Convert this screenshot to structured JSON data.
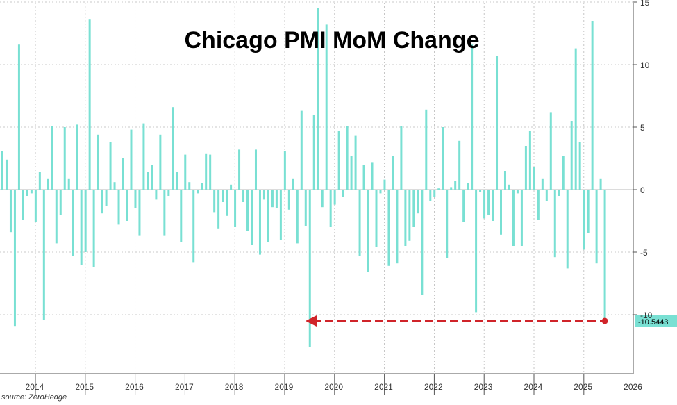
{
  "source": "source: ZeroHedge",
  "colors": {
    "bar": "#79e0d3",
    "arrow": "#d0242a",
    "label_bg": "#79e0d3",
    "grid": "#b8b8b8"
  },
  "chart_data": {
    "type": "bar",
    "title": "Chicago PMI MoM Change",
    "xlabel": "",
    "ylabel": "",
    "ylim": [
      -12.5,
      15
    ],
    "yticks": [
      15,
      10,
      5,
      0,
      -5,
      -10
    ],
    "grid": true,
    "year_labels": [
      "2014",
      "2015",
      "2016",
      "2017",
      "2018",
      "2019",
      "2020",
      "2021",
      "2022",
      "2023",
      "2024",
      "2025",
      "2026"
    ],
    "start": "2014-01",
    "series": [
      {
        "values": [
          3.1,
          2.4,
          -3.4,
          -10.9,
          11.6,
          -2.4,
          -0.5,
          -0.3,
          -2.6,
          1.4,
          -10.4,
          0.9,
          5.1,
          -4.3,
          -2.0,
          5.0,
          0.9,
          -5.3,
          5.2,
          -6.0,
          -5.0,
          13.6,
          -6.2,
          4.4,
          -1.9,
          -1.3,
          3.8,
          0.6,
          -2.8,
          2.5,
          -2.5,
          4.8,
          -1.5,
          -3.7,
          5.3,
          1.4,
          2.0,
          -0.8,
          4.4,
          -3.7,
          -0.5,
          6.6,
          1.4,
          -4.2,
          2.8,
          0.6,
          -5.8,
          -0.3,
          0.5,
          2.9,
          2.8,
          -1.8,
          -3.1,
          -1.0,
          -2.1,
          0.4,
          -3.0,
          3.2,
          -1.0,
          -3.3,
          -4.4,
          3.2,
          -5.2,
          -0.8,
          -4.2,
          -1.4,
          -1.5,
          -4.0,
          3.1,
          -1.6,
          0.9,
          -4.3,
          6.3,
          -2.9,
          -12.6,
          6.0,
          14.5,
          -1.4,
          13.2,
          -3.0,
          -1.2,
          4.7,
          -0.6,
          5.1,
          2.7,
          4.3,
          -5.3,
          2.0,
          -6.6,
          2.2,
          -4.6,
          -0.3,
          0.8,
          -6.1,
          2.7,
          -5.9,
          5.1,
          -4.5,
          -4.1,
          -3.0,
          -1.9,
          -8.4,
          6.4,
          -0.9,
          -0.6,
          0.1,
          5.0,
          -5.5,
          0.2,
          0.7,
          3.9,
          -2.6,
          0.5,
          11.6,
          -9.8,
          -0.2,
          -2.3,
          -2.0,
          -2.5,
          10.7,
          -3.6,
          1.5,
          0.4,
          -4.5,
          -0.3,
          -4.5,
          3.5,
          4.7,
          1.8,
          -2.4,
          0.9,
          -0.9,
          6.2,
          -5.4,
          -0.5,
          2.7,
          -6.3,
          5.5,
          11.3,
          3.8,
          -4.8,
          -3.5,
          13.5,
          -5.9,
          0.9,
          -10.5443
        ]
      }
    ],
    "last_value_label": "-10.5443"
  }
}
